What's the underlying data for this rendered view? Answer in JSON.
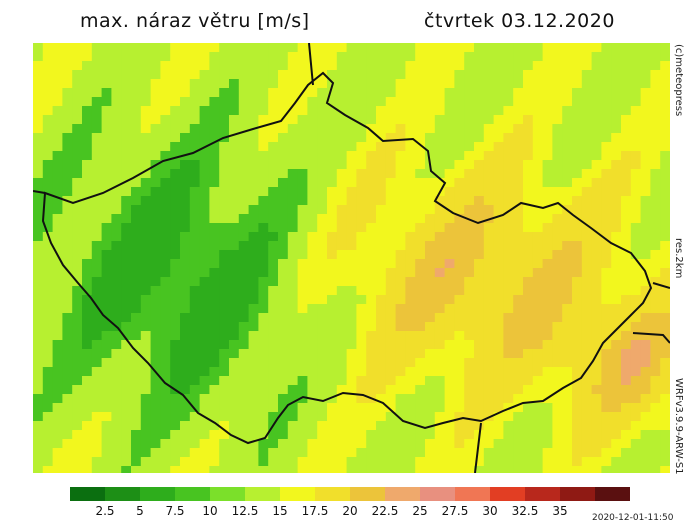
{
  "header": {
    "title": "max. náraz větru [m/s]",
    "date": "čtvrtek 03.12.2020"
  },
  "side": {
    "copyright": "(c)meteopress",
    "resolution": "res.2km",
    "model": "WRFv3.9.9-ARW-S1"
  },
  "timestamp": "2020-12-01-11:50",
  "legend": {
    "colors": [
      "#0b6f10",
      "#1d8f16",
      "#2ead1c",
      "#48c421",
      "#7be02a",
      "#b7f030",
      "#f2f71e",
      "#f1df2b",
      "#ecc43a",
      "#efa96c",
      "#e8907f",
      "#f07654",
      "#e23e23",
      "#b8281c",
      "#8f1a14",
      "#5a1010"
    ],
    "labels": [
      "2.5",
      "5",
      "7.5",
      "10",
      "12.5",
      "15",
      "17.5",
      "20",
      "22.5",
      "25",
      "27.5",
      "30",
      "32.5",
      "35"
    ]
  }
}
